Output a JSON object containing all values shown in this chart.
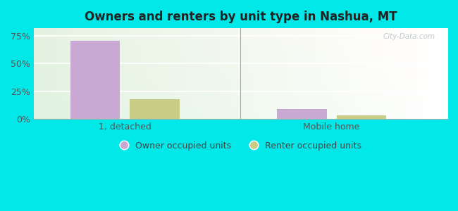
{
  "title": "Owners and renters by unit type in Nashua, MT",
  "categories": [
    "1, detached",
    "Mobile home"
  ],
  "owner_values": [
    70.6,
    8.8
  ],
  "renter_values": [
    17.6,
    2.9
  ],
  "owner_color": "#c9a8d4",
  "renter_color": "#c8cc84",
  "owner_label": "Owner occupied units",
  "renter_label": "Renter occupied units",
  "yticks": [
    0,
    25,
    50,
    75
  ],
  "ylim": [
    0,
    82
  ],
  "bg_outer": "#00e8e8",
  "watermark": "City-Data.com",
  "bar_width": 0.12,
  "group_centers": [
    0.22,
    0.72
  ]
}
